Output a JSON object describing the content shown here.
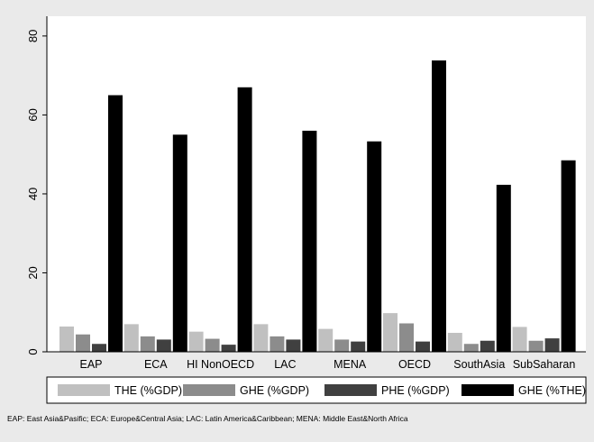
{
  "chart_data": {
    "type": "bar",
    "categories": [
      "EAP",
      "ECA",
      "HI NonOECD",
      "LAC",
      "MENA",
      "OECD",
      "SouthAsia",
      "SubSaharan"
    ],
    "series": [
      {
        "name": "THE (%GDP)",
        "color": "#c0c0c0",
        "values": [
          6.4,
          7.0,
          5.1,
          7.0,
          5.8,
          9.8,
          4.8,
          6.3
        ]
      },
      {
        "name": "GHE (%GDP)",
        "color": "#8c8c8c",
        "values": [
          4.4,
          3.9,
          3.3,
          3.9,
          3.1,
          7.2,
          2.0,
          2.8
        ]
      },
      {
        "name": "PHE (%GDP)",
        "color": "#404040",
        "values": [
          2.0,
          3.1,
          1.8,
          3.1,
          2.6,
          2.6,
          2.8,
          3.4
        ]
      },
      {
        "name": "GHE (%THE)",
        "color": "#000000",
        "values": [
          65.0,
          55.0,
          67.0,
          56.0,
          53.3,
          73.8,
          42.3,
          48.5
        ]
      }
    ],
    "yticks": [
      0,
      20,
      40,
      60,
      80
    ],
    "ylim": [
      0,
      85
    ],
    "grid": false,
    "legend_position": "bottom",
    "footnote": "EAP: East Asia&Pasific; ECA: Europe&Central Asia; LAC: Latin America&Caribbean; MENA: Middle East&North Africa"
  }
}
